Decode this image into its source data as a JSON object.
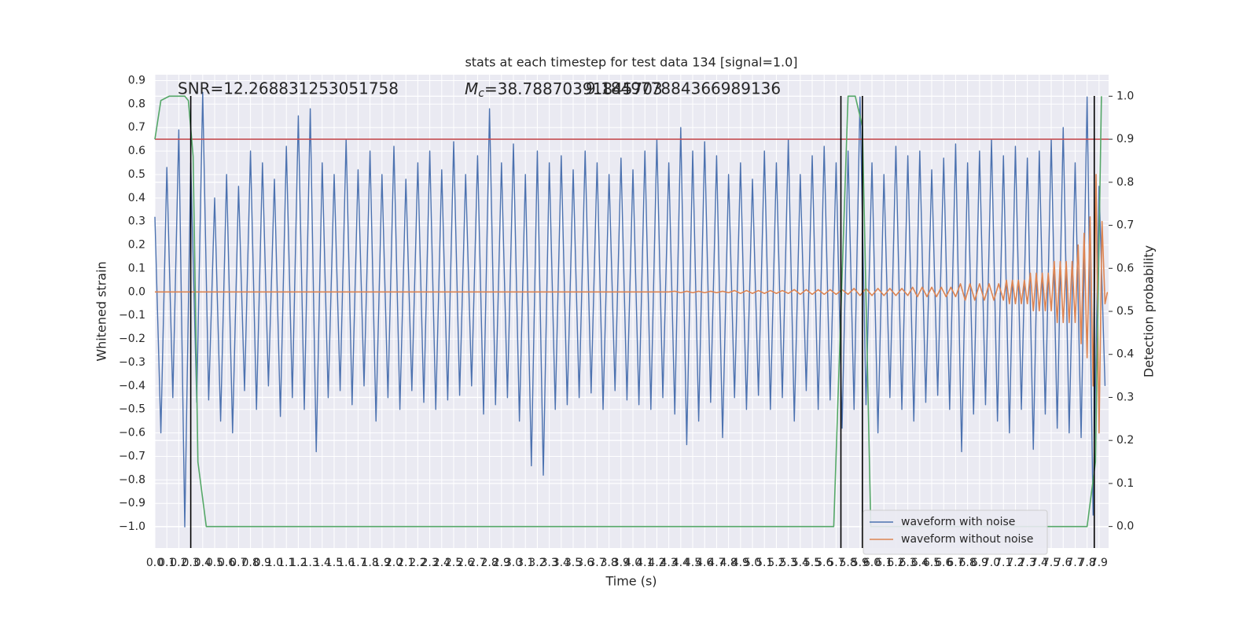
{
  "chart_data": {
    "type": "line",
    "title": "stats at each timestep for test data 134 [signal=1.0]",
    "xlabel": "Time (s)",
    "ylabel": "Whitened strain",
    "y2label": "Detection probability",
    "annotations": [
      "SNR=12.268831253051758",
      "=38.78870391845703",
      "9.184977884366989136"
    ],
    "mc_symbol": "M",
    "mc_subscript": "c",
    "xlim": [
      0,
      7.98
    ],
    "ylim": [
      -1.09,
      0.925
    ],
    "y2lim": [
      -0.05,
      1.05
    ],
    "xticks": [
      {
        "value": 0,
        "label": "0.0"
      },
      0.1,
      0.2,
      0.3,
      0.4,
      0.5,
      0.6,
      0.7,
      0.8,
      0.9,
      {
        "value": 1,
        "label": "1.0"
      },
      1.1,
      1.2,
      1.3,
      1.4,
      1.5,
      1.6,
      1.7,
      1.8,
      1.9,
      {
        "value": 2,
        "label": "2.0"
      },
      2.1,
      2.2,
      2.3,
      2.4,
      2.5,
      2.6,
      2.7,
      2.8,
      2.9,
      {
        "value": 3,
        "label": "3.0"
      },
      3.1,
      3.2,
      3.3,
      3.4,
      3.5,
      3.6,
      3.7,
      3.8,
      3.9,
      {
        "value": 4,
        "label": "4.0"
      },
      4.1,
      4.2,
      4.3,
      4.4,
      4.5,
      4.6,
      4.7,
      4.8,
      4.9,
      {
        "value": 5,
        "label": "5.0"
      },
      5.1,
      5.2,
      5.3,
      5.4,
      5.5,
      5.6,
      5.7,
      5.8,
      5.9,
      {
        "value": 6,
        "label": "6.0"
      },
      6.1,
      6.2,
      6.3,
      6.4,
      6.5,
      6.6,
      6.7,
      6.8,
      6.9,
      {
        "value": 7,
        "label": "7.0"
      },
      7.1,
      7.2,
      7.3,
      7.4,
      7.5,
      7.6,
      7.7,
      7.8,
      7.9
    ],
    "yticks": [
      {
        "value": -1,
        "label": "−1.0"
      },
      {
        "value": -0.9,
        "label": "−0.9"
      },
      {
        "value": -0.8,
        "label": "−0.8"
      },
      {
        "value": -0.7,
        "label": "−0.7"
      },
      {
        "value": -0.6,
        "label": "−0.6"
      },
      {
        "value": -0.5,
        "label": "−0.5"
      },
      {
        "value": -0.4,
        "label": "−0.4"
      },
      {
        "value": -0.3,
        "label": "−0.3"
      },
      {
        "value": -0.2,
        "label": "−0.2"
      },
      {
        "value": -0.1,
        "label": "−0.1"
      },
      {
        "value": 0,
        "label": "0.0"
      },
      0.1,
      0.2,
      0.3,
      0.4,
      0.5,
      0.6,
      0.7,
      0.8,
      0.9
    ],
    "y2ticks": [
      {
        "value": 0,
        "label": "0.0"
      },
      0.1,
      0.2,
      0.3,
      0.4,
      0.5,
      0.6,
      0.7,
      0.8,
      0.9,
      {
        "value": 1,
        "label": "1.0"
      }
    ],
    "grid": true,
    "legend": "lower right",
    "series": [
      {
        "name": "waveform with noise",
        "color": "#4c72b0",
        "x": [
          0,
          0.05,
          0.1,
          0.15,
          0.2,
          0.25,
          0.3,
          0.35,
          0.4,
          0.45,
          0.5,
          0.55,
          0.6,
          0.65,
          0.7,
          0.75,
          0.8,
          0.85,
          0.9,
          0.95,
          1,
          1.05,
          1.1,
          1.15,
          1.2,
          1.25,
          1.3,
          1.35,
          1.4,
          1.45,
          1.5,
          1.55,
          1.6,
          1.65,
          1.7,
          1.75,
          1.8,
          1.85,
          1.9,
          1.95,
          2,
          2.05,
          2.1,
          2.15,
          2.2,
          2.25,
          2.3,
          2.35,
          2.4,
          2.45,
          2.5,
          2.55,
          2.6,
          2.65,
          2.7,
          2.75,
          2.8,
          2.85,
          2.9,
          2.95,
          3,
          3.05,
          3.1,
          3.15,
          3.2,
          3.25,
          3.3,
          3.35,
          3.4,
          3.45,
          3.5,
          3.55,
          3.6,
          3.65,
          3.7,
          3.75,
          3.8,
          3.85,
          3.9,
          3.95,
          4,
          4.05,
          4.1,
          4.15,
          4.2,
          4.25,
          4.3,
          4.35,
          4.4,
          4.45,
          4.5,
          4.55,
          4.6,
          4.65,
          4.7,
          4.75,
          4.8,
          4.85,
          4.9,
          4.95,
          5,
          5.05,
          5.1,
          5.15,
          5.2,
          5.25,
          5.3,
          5.35,
          5.4,
          5.45,
          5.5,
          5.55,
          5.6,
          5.65,
          5.7,
          5.75,
          5.8,
          5.85,
          5.9,
          5.95,
          6,
          6.05,
          6.1,
          6.15,
          6.2,
          6.25,
          6.3,
          6.35,
          6.4,
          6.45,
          6.5,
          6.55,
          6.6,
          6.65,
          6.7,
          6.75,
          6.8,
          6.85,
          6.9,
          6.95,
          7,
          7.05,
          7.1,
          7.15,
          7.2,
          7.25,
          7.3,
          7.35,
          7.4,
          7.45,
          7.5,
          7.55,
          7.6,
          7.65,
          7.7,
          7.75,
          7.8,
          7.85,
          7.9,
          7.95
        ],
        "values": [
          0.32,
          -0.6,
          0.53,
          -0.45,
          0.69,
          -1.0,
          0.55,
          -0.47,
          0.85,
          -0.46,
          0.4,
          -0.55,
          0.5,
          -0.6,
          0.45,
          -0.42,
          0.6,
          -0.5,
          0.55,
          -0.4,
          0.48,
          -0.53,
          0.62,
          -0.45,
          0.75,
          -0.5,
          0.78,
          -0.68,
          0.55,
          -0.45,
          0.5,
          -0.42,
          0.65,
          -0.48,
          0.52,
          -0.4,
          0.6,
          -0.55,
          0.5,
          -0.45,
          0.62,
          -0.5,
          0.48,
          -0.42,
          0.55,
          -0.47,
          0.6,
          -0.5,
          0.52,
          -0.46,
          0.64,
          -0.44,
          0.5,
          -0.4,
          0.58,
          -0.52,
          0.78,
          -0.48,
          0.55,
          -0.45,
          0.63,
          -0.55,
          0.5,
          -0.74,
          0.6,
          -0.78,
          0.55,
          -0.5,
          0.58,
          -0.48,
          0.52,
          -0.45,
          0.6,
          -0.43,
          0.55,
          -0.5,
          0.5,
          -0.42,
          0.57,
          -0.46,
          0.52,
          -0.48,
          0.6,
          -0.5,
          0.65,
          -0.45,
          0.55,
          -0.52,
          0.7,
          -0.65,
          0.6,
          -0.55,
          0.64,
          -0.47,
          0.58,
          -0.62,
          0.5,
          -0.45,
          0.55,
          -0.5,
          0.48,
          -0.44,
          0.6,
          -0.5,
          0.55,
          -0.45,
          0.65,
          -0.55,
          0.5,
          -0.42,
          0.58,
          -0.5,
          0.62,
          -0.46,
          0.55,
          -0.58,
          0.6,
          -0.5,
          0.83,
          -0.48,
          0.55,
          -0.6,
          0.5,
          -0.45,
          0.62,
          -0.5,
          0.58,
          -0.55,
          0.6,
          -0.47,
          0.52,
          -0.44,
          0.57,
          -0.5,
          0.63,
          -0.68,
          0.55,
          -0.52,
          0.6,
          -0.48,
          0.65,
          -0.55,
          0.58,
          -0.6,
          0.62,
          -0.5,
          0.57,
          -0.67,
          0.6,
          -0.52,
          0.65,
          -0.58,
          0.7,
          -0.6,
          0.55,
          -0.62,
          0.83,
          -0.95,
          0.45,
          -0.4
        ]
      },
      {
        "name": "waveform without noise",
        "color": "#dd8452",
        "x": [
          0,
          4.3,
          4.35,
          4.4,
          4.45,
          4.5,
          4.55,
          4.6,
          4.65,
          4.7,
          4.75,
          4.8,
          4.85,
          4.9,
          4.95,
          5.0,
          5.05,
          5.1,
          5.15,
          5.2,
          5.25,
          5.3,
          5.35,
          5.4,
          5.45,
          5.5,
          5.55,
          5.6,
          5.65,
          5.7,
          5.75,
          5.8,
          5.85,
          5.9,
          5.95,
          6.0,
          6.05,
          6.1,
          6.15,
          6.2,
          6.25,
          6.3,
          6.34,
          6.38,
          6.42,
          6.46,
          6.5,
          6.54,
          6.58,
          6.62,
          6.66,
          6.7,
          6.74,
          6.78,
          6.82,
          6.86,
          6.9,
          6.94,
          6.98,
          7.02,
          7.06,
          7.1,
          7.125,
          7.15,
          7.175,
          7.2,
          7.225,
          7.25,
          7.275,
          7.3,
          7.325,
          7.35,
          7.375,
          7.4,
          7.425,
          7.45,
          7.475,
          7.5,
          7.525,
          7.55,
          7.575,
          7.6,
          7.625,
          7.65,
          7.675,
          7.7,
          7.725,
          7.75,
          7.775,
          7.8,
          7.825,
          7.85,
          7.875,
          7.9,
          7.925,
          7.95,
          7.97
        ],
        "values": [
          0,
          0,
          0.003,
          -0.003,
          0.003,
          -0.003,
          0.003,
          -0.003,
          0.003,
          -0.003,
          0.003,
          -0.003,
          0.006,
          -0.006,
          0.006,
          -0.006,
          0.006,
          -0.006,
          0.006,
          -0.006,
          0.006,
          -0.006,
          0.01,
          -0.01,
          0.01,
          -0.01,
          0.01,
          -0.01,
          0.01,
          -0.01,
          0.01,
          -0.01,
          0.015,
          -0.015,
          0.015,
          -0.015,
          0.015,
          -0.015,
          0.015,
          -0.015,
          0.015,
          -0.015,
          0.02,
          -0.02,
          0.02,
          -0.02,
          0.02,
          -0.02,
          0.02,
          -0.02,
          0.02,
          -0.02,
          0.035,
          -0.035,
          0.035,
          -0.035,
          0.035,
          -0.035,
          0.035,
          -0.035,
          0.035,
          -0.035,
          0.05,
          -0.05,
          0.05,
          -0.05,
          0.05,
          -0.05,
          0.05,
          -0.05,
          0.08,
          -0.08,
          0.08,
          -0.08,
          0.08,
          -0.08,
          0.08,
          -0.08,
          0.13,
          -0.13,
          0.13,
          -0.13,
          0.13,
          -0.13,
          0.13,
          -0.13,
          0.2,
          -0.22,
          0.25,
          -0.28,
          0.32,
          -0.4,
          0.5,
          -0.6,
          0.3,
          -0.05,
          0
        ]
      },
      {
        "color": "#55a868",
        "axis": "y2",
        "x": [
          0,
          0.05,
          0.12,
          0.25,
          0.28,
          0.32,
          0.36,
          0.43,
          5.68,
          5.8,
          5.86,
          5.92,
          5.99,
          7.8,
          7.87,
          7.92
        ],
        "values": [
          0.9,
          0.99,
          1.0,
          1.0,
          0.99,
          0.86,
          0.15,
          0,
          0,
          1.0,
          1.0,
          0.93,
          0,
          0,
          0.15,
          1.0
        ]
      }
    ],
    "threshold": 0.9,
    "threshold_color": "#c44e52",
    "vlines": [
      0.3,
      5.74,
      5.92,
      7.86
    ],
    "vline_color": "#000000"
  }
}
